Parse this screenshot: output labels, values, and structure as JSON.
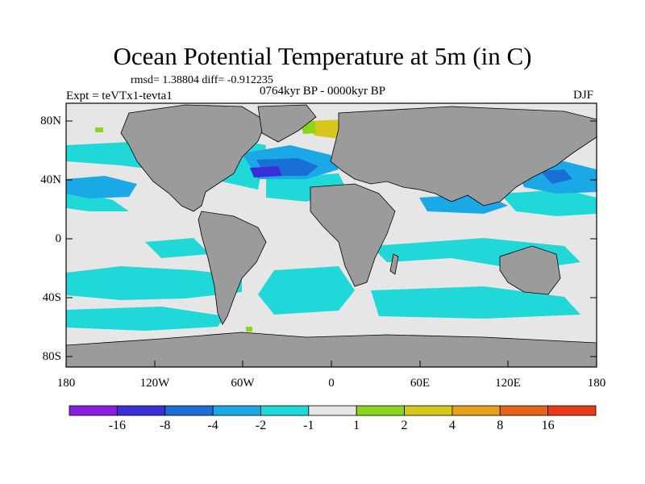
{
  "plot": {
    "title": "Ocean Potential Temperature at 5m (in C)",
    "stats": "rmsd= 1.38804 diff= -0.912235",
    "experiment": "Expt = teVTx1-tevta1",
    "period": "0764kyr BP - 0000kyr BP",
    "season": "DJF"
  },
  "axes": {
    "lat_labels": [
      "80N",
      "40N",
      "0",
      "40S",
      "80S"
    ],
    "lon_labels": [
      "180",
      "120W",
      "60W",
      "0",
      "60E",
      "120E",
      "180"
    ]
  },
  "colors": {
    "land": "#9b9b9b",
    "background": "#ffffff",
    "frame": "#000000"
  },
  "colorbar": {
    "labels": [
      "-16",
      "-8",
      "-4",
      "-2",
      "-1",
      "1",
      "2",
      "4",
      "8",
      "16"
    ],
    "colors": [
      "#8a1de0",
      "#3a2fd6",
      "#1a6fd6",
      "#1aa8e6",
      "#20d8d8",
      "#e6e6e6",
      "#8ad61a",
      "#d6c81a",
      "#e6a01a",
      "#e6641a",
      "#e63a1a"
    ]
  }
}
